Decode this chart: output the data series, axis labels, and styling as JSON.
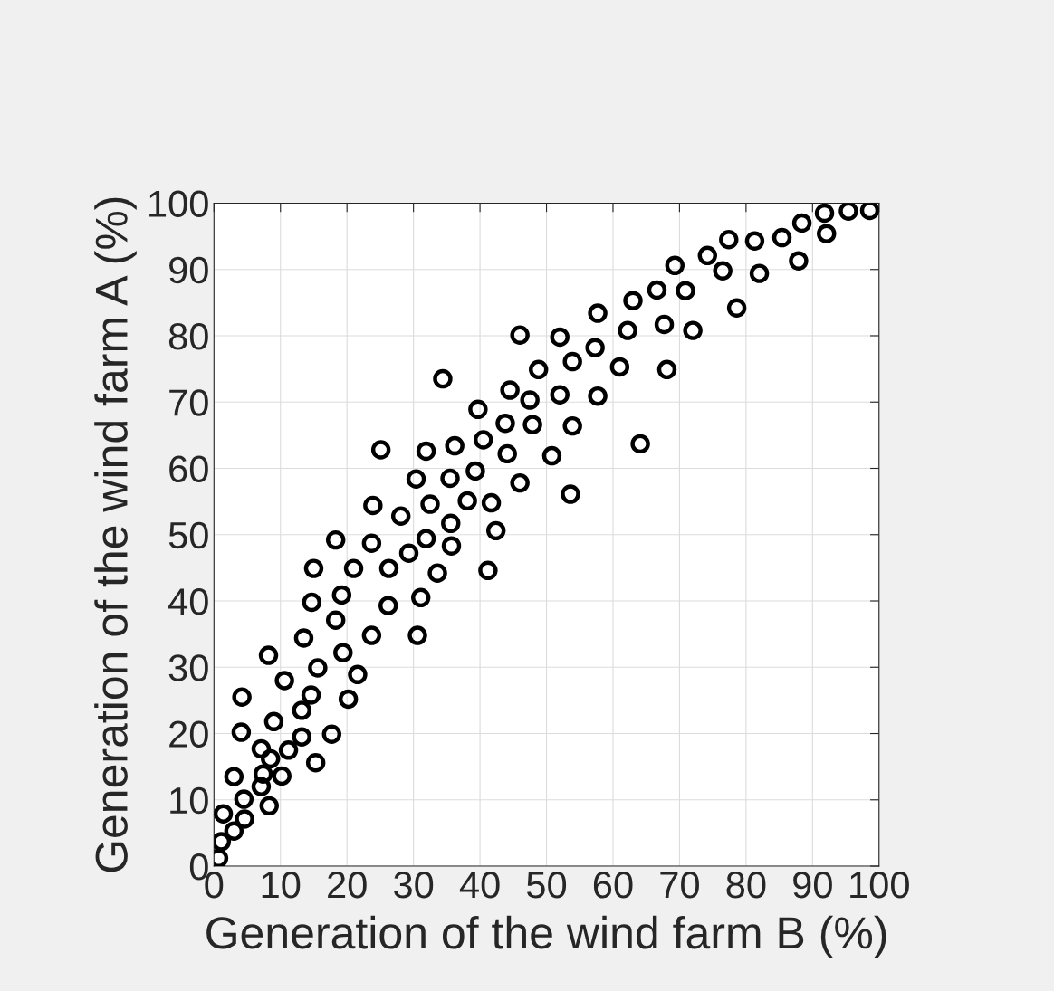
{
  "chart_data": {
    "type": "scatter",
    "xlabel": "Generation of the wind farm B (%)",
    "ylabel": "Generation of the wind farm A (%)",
    "xlim": [
      0,
      100
    ],
    "ylim": [
      0,
      100
    ],
    "xticks": [
      0,
      10,
      20,
      30,
      40,
      50,
      60,
      70,
      80,
      90,
      100
    ],
    "yticks": [
      0,
      10,
      20,
      30,
      40,
      50,
      60,
      70,
      80,
      90,
      100
    ],
    "grid": true,
    "marker": "circle",
    "series": [
      {
        "color": "#000000",
        "x": [
          0.7,
          1.1,
          3.0,
          4.6,
          1.4,
          3.0,
          4.5,
          7.1,
          7.4,
          8.5,
          10.2,
          8.3,
          7.1,
          4.1,
          9.0,
          4.2,
          8.2,
          10.6,
          11.2,
          13.2,
          13.2,
          15.3,
          14.6,
          17.7,
          20.2,
          19.4,
          15.6,
          21.6,
          13.5,
          18.3,
          19.2,
          14.7,
          15.0,
          23.7,
          26.2,
          21.0,
          18.3,
          23.7,
          23.9,
          25.1,
          26.3,
          28.1,
          29.3,
          30.6,
          31.1,
          30.4,
          31.9,
          32.5,
          33.6,
          35.7,
          31.9,
          35.5,
          35.6,
          34.4,
          36.2,
          38.1,
          39.7,
          40.5,
          39.3,
          42.4,
          41.7,
          41.2,
          43.8,
          44.5,
          44.1,
          47.5,
          46.0,
          46.0,
          47.9,
          48.8,
          52.0,
          52.0,
          53.9,
          53.9,
          50.8,
          53.6,
          57.3,
          57.7,
          57.7,
          61.0,
          62.2,
          63.0,
          64.1,
          66.6,
          67.7,
          68.1,
          69.3,
          70.9,
          72.0,
          74.2,
          76.5,
          77.4,
          78.6,
          81.3,
          82.0,
          85.4,
          87.9,
          88.4,
          92.1,
          91.8,
          95.4,
          98.6
        ],
        "values": [
          1.2,
          3.7,
          5.3,
          7.1,
          7.9,
          13.5,
          10.1,
          12.0,
          13.9,
          16.2,
          13.6,
          9.1,
          17.7,
          20.2,
          21.8,
          25.5,
          31.8,
          28.0,
          17.5,
          19.5,
          23.5,
          15.6,
          25.8,
          19.9,
          25.2,
          32.2,
          29.9,
          28.9,
          34.4,
          37.1,
          40.9,
          39.8,
          44.9,
          34.8,
          39.3,
          44.9,
          49.2,
          48.7,
          54.4,
          62.8,
          44.9,
          52.8,
          47.2,
          34.8,
          40.5,
          58.4,
          49.4,
          54.6,
          44.2,
          48.3,
          62.6,
          58.5,
          51.7,
          73.5,
          63.4,
          55.1,
          68.9,
          64.3,
          59.6,
          50.6,
          54.8,
          44.6,
          66.8,
          71.8,
          62.2,
          70.3,
          57.8,
          80.1,
          66.6,
          74.9,
          79.8,
          71.1,
          76.1,
          66.4,
          61.9,
          56.1,
          78.2,
          70.9,
          83.4,
          75.3,
          80.8,
          85.3,
          63.7,
          86.9,
          81.7,
          74.9,
          90.6,
          86.8,
          80.8,
          92.1,
          89.8,
          94.5,
          84.2,
          94.3,
          89.4,
          94.8,
          91.3,
          97.0,
          95.4,
          98.5,
          98.8,
          98.9
        ]
      }
    ]
  }
}
